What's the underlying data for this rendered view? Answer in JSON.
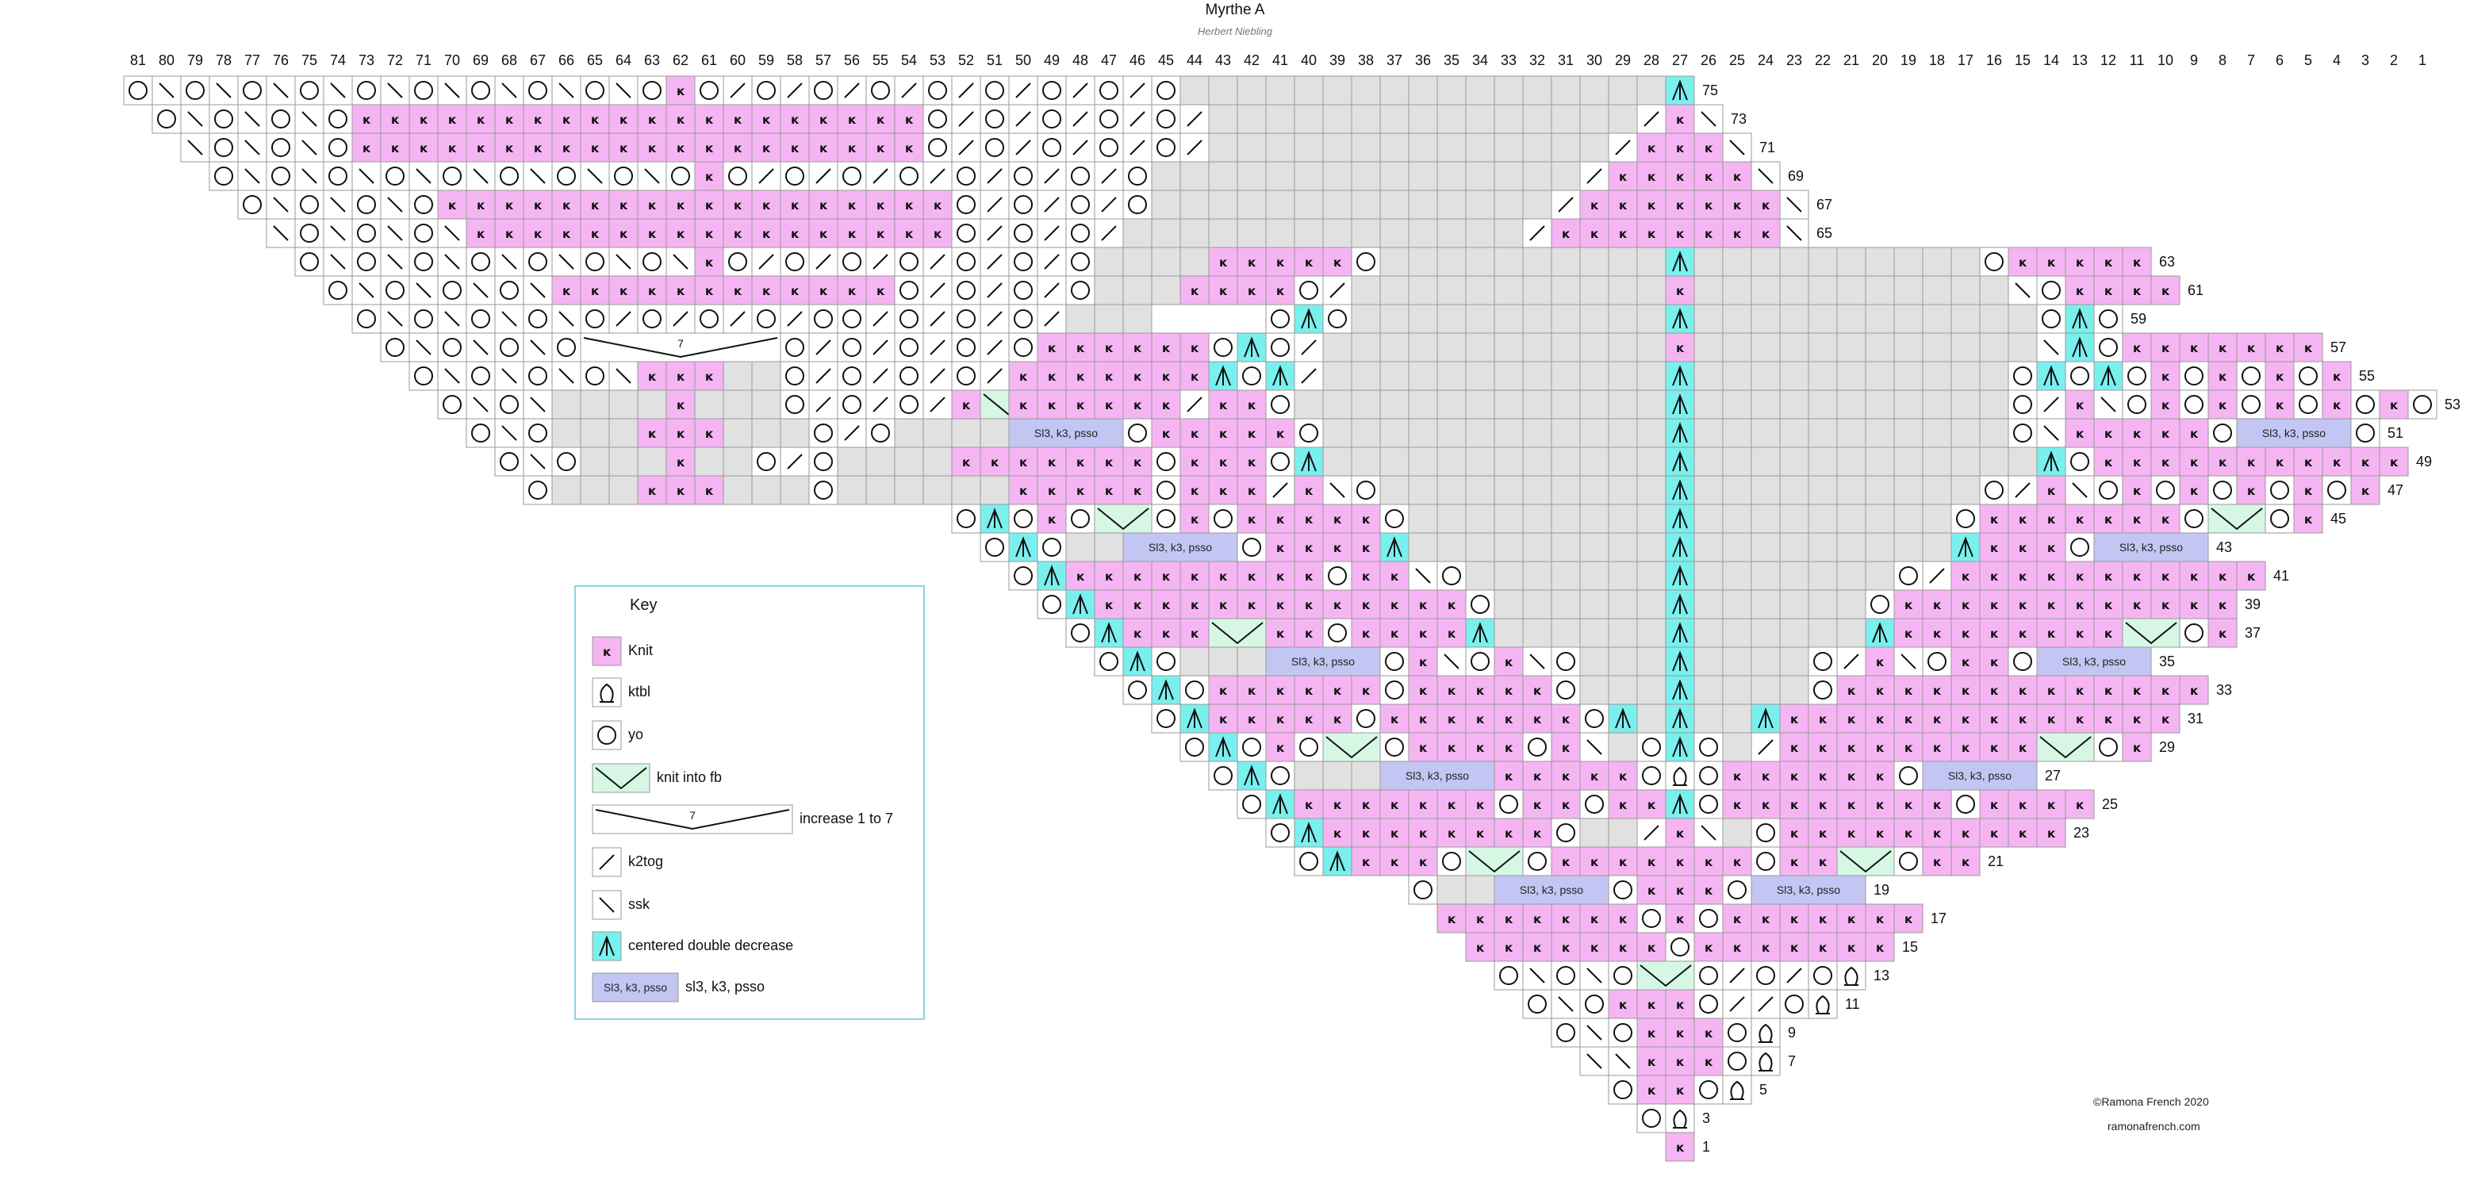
{
  "title": "Myrthe A",
  "subtitle": "Herbert Niebling",
  "colors": {
    "knit": "#f5b5f2",
    "knit_into_fb": "#d7f7e5",
    "centered_double_decrease": "#7af0ee",
    "sl3_k3_psso": "#c3c6f3",
    "no_stitch": "#e1e1e1",
    "grid_line": "#999999",
    "key_border": "#8fd3e0"
  },
  "column_numbers": [
    "81",
    "80",
    "79",
    "78",
    "77",
    "76",
    "75",
    "74",
    "73",
    "72",
    "71",
    "70",
    "69",
    "68",
    "67",
    "66",
    "65",
    "64",
    "63",
    "62",
    "61",
    "60",
    "59",
    "58",
    "57",
    "56",
    "55",
    "54",
    "53",
    "52",
    "51",
    "50",
    "49",
    "48",
    "47",
    "46",
    "45",
    "44",
    "43",
    "42",
    "41",
    "40",
    "39",
    "38",
    "37",
    "36",
    "35",
    "34",
    "33",
    "32",
    "31",
    "30",
    "29",
    "28",
    "27",
    "26",
    "25",
    "24",
    "23",
    "22",
    "21",
    "20",
    "19",
    "18",
    "17",
    "16",
    "15",
    "14",
    "13",
    "12",
    "11",
    "10",
    "9",
    "8",
    "7",
    "6",
    "5",
    "4",
    "3",
    "2",
    "1"
  ],
  "row_numbers": [
    "75",
    "73",
    "71",
    "69",
    "67",
    "65",
    "63",
    "61",
    "59",
    "57",
    "55",
    "53",
    "51",
    "49",
    "47",
    "45",
    "43",
    "41",
    "39",
    "37",
    "35",
    "33",
    "31",
    "29",
    "27",
    "25",
    "23",
    "21",
    "19",
    "17",
    "15",
    "13",
    "11",
    "9",
    "7",
    "5",
    "3",
    "1"
  ],
  "knit_symbol": "ĸ",
  "increase_label": "7",
  "sl3_label": "Sl3, k3, psso",
  "key": {
    "title": "Key",
    "items": [
      {
        "symbol": "knit",
        "label": "Knit"
      },
      {
        "symbol": "ktbl",
        "label": "ktbl"
      },
      {
        "symbol": "yo",
        "label": "yo"
      },
      {
        "symbol": "knit_into_fb",
        "label": "knit into fb"
      },
      {
        "symbol": "increase",
        "label": "increase 1 to 7"
      },
      {
        "symbol": "k2tog",
        "label": "k2tog"
      },
      {
        "symbol": "ssk",
        "label": "ssk"
      },
      {
        "symbol": "cdd",
        "label": "centered double decrease"
      },
      {
        "symbol": "sl3",
        "label": "sl3, k3, psso"
      }
    ]
  },
  "credits": {
    "copyright": "©Ramona French 2020",
    "website": "ramonafrench.com"
  }
}
